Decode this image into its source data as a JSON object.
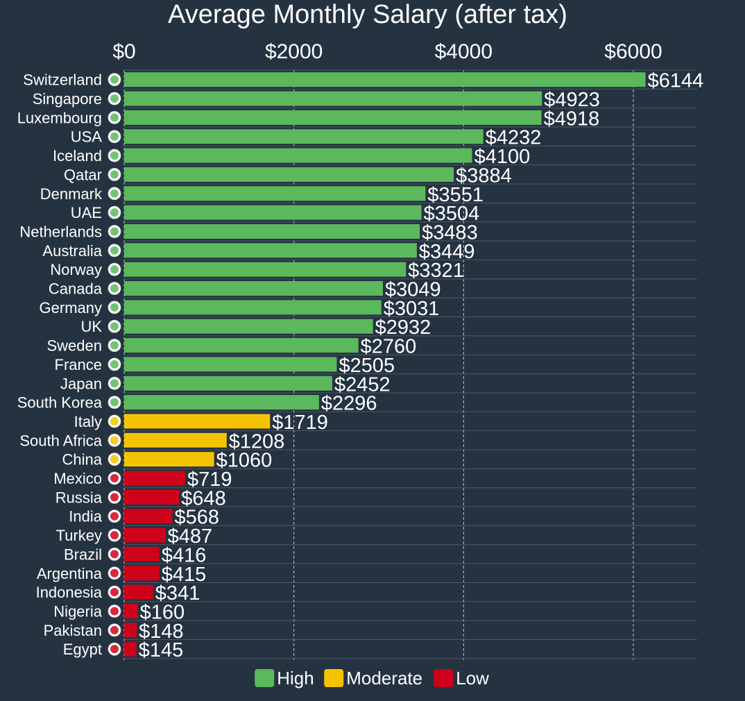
{
  "chart_data": {
    "type": "bar",
    "orientation": "horizontal",
    "title": "Average Monthly Salary (after tax)",
    "xlabel": "",
    "ylabel": "",
    "xlim": [
      0,
      6800
    ],
    "ticks": [
      0,
      2000,
      4000,
      6000
    ],
    "tick_labels": [
      "$0",
      "$2000",
      "$4000",
      "$6000"
    ],
    "value_prefix": "$",
    "colors": {
      "High": "#5cb85c",
      "Moderate": "#f5c400",
      "Low": "#d0021b"
    },
    "legend": [
      "High",
      "Moderate",
      "Low"
    ],
    "legend_position": "bottom-center",
    "categories": [
      "Switzerland",
      "Singapore",
      "Luxembourg",
      "USA",
      "Iceland",
      "Qatar",
      "Denmark",
      "UAE",
      "Netherlands",
      "Australia",
      "Norway",
      "Canada",
      "Germany",
      "UK",
      "Sweden",
      "France",
      "Japan",
      "South Korea",
      "Italy",
      "South Africa",
      "China",
      "Mexico",
      "Russia",
      "India",
      "Turkey",
      "Brazil",
      "Argentina",
      "Indonesia",
      "Nigeria",
      "Pakistan",
      "Egypt"
    ],
    "values": [
      6144,
      4923,
      4918,
      4232,
      4100,
      3884,
      3551,
      3504,
      3483,
      3449,
      3321,
      3049,
      3031,
      2932,
      2760,
      2505,
      2452,
      2296,
      1719,
      1208,
      1060,
      719,
      648,
      568,
      487,
      416,
      415,
      341,
      160,
      148,
      145
    ],
    "levels": [
      "High",
      "High",
      "High",
      "High",
      "High",
      "High",
      "High",
      "High",
      "High",
      "High",
      "High",
      "High",
      "High",
      "High",
      "High",
      "High",
      "High",
      "High",
      "Moderate",
      "Moderate",
      "Moderate",
      "Low",
      "Low",
      "Low",
      "Low",
      "Low",
      "Low",
      "Low",
      "Low",
      "Low",
      "Low"
    ],
    "flag_icons": [
      "switzerland-flag-icon",
      "singapore-flag-icon",
      "luxembourg-flag-icon",
      "usa-flag-icon",
      "iceland-flag-icon",
      "qatar-flag-icon",
      "denmark-flag-icon",
      "uae-flag-icon",
      "netherlands-flag-icon",
      "australia-flag-icon",
      "norway-flag-icon",
      "canada-flag-icon",
      "germany-flag-icon",
      "uk-flag-icon",
      "sweden-flag-icon",
      "france-flag-icon",
      "japan-flag-icon",
      "south-korea-flag-icon",
      "italy-flag-icon",
      "south-africa-flag-icon",
      "china-flag-icon",
      "mexico-flag-icon",
      "russia-flag-icon",
      "india-flag-icon",
      "turkey-flag-icon",
      "brazil-flag-icon",
      "argentina-flag-icon",
      "indonesia-flag-icon",
      "nigeria-flag-icon",
      "pakistan-flag-icon",
      "egypt-flag-icon"
    ]
  }
}
